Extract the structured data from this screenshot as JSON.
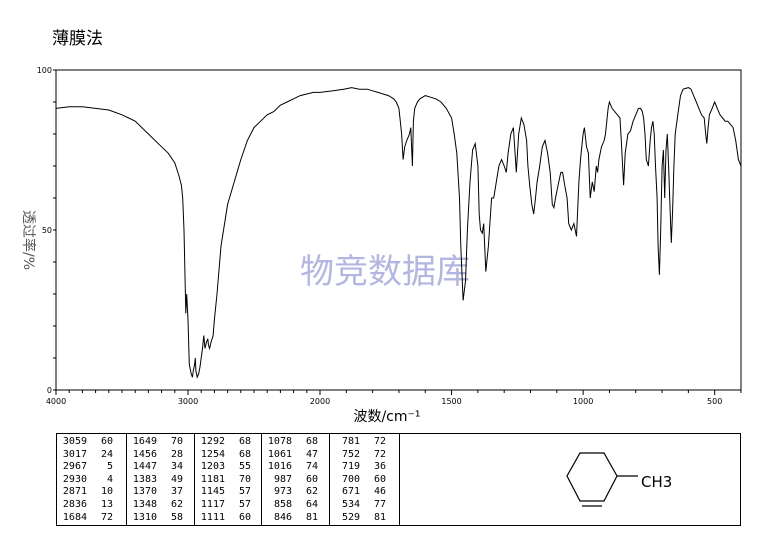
{
  "header": {
    "method": "薄膜法"
  },
  "colors": {
    "line": "#000000",
    "watermark": "#b3b6e0"
  },
  "chart_data": {
    "type": "line",
    "title": "",
    "xlabel": "波数/cm⁻¹",
    "ylabel": "透过率/%",
    "xlim": [
      4000,
      400
    ],
    "ylim": [
      0,
      100
    ],
    "x_ticks": [
      4000,
      3000,
      2000,
      1500,
      1000,
      500
    ],
    "x_tick_labels": [
      "4000",
      "3000",
      "2000",
      "1500",
      "1000",
      "500"
    ],
    "y_ticks": [
      0,
      50,
      100
    ],
    "y_tick_labels": [
      "0",
      "50",
      "100"
    ],
    "watermark": "物竞数据库",
    "series": [
      {
        "x": [
          4000,
          3900,
          3800,
          3700,
          3600,
          3500,
          3400,
          3300,
          3200,
          3150,
          3100,
          3069,
          3050,
          3040,
          3030,
          3025,
          3017,
          3010,
          3000,
          2990,
          2980,
          2975,
          2967,
          2960,
          2950,
          2945,
          2940,
          2935,
          2930,
          2920,
          2910,
          2900,
          2890,
          2880,
          2871,
          2860,
          2850,
          2845,
          2836,
          2825,
          2810,
          2800,
          2780,
          2750,
          2700,
          2650,
          2600,
          2550,
          2500,
          2450,
          2400,
          2350,
          2300,
          2250,
          2200,
          2150,
          2100,
          2050,
          2000,
          1950,
          1910,
          1880,
          1850,
          1820,
          1800,
          1780,
          1760,
          1740,
          1720,
          1710,
          1700,
          1695,
          1690,
          1684,
          1678,
          1670,
          1660,
          1655,
          1649,
          1645,
          1640,
          1630,
          1620,
          1600,
          1580,
          1560,
          1540,
          1520,
          1500,
          1490,
          1480,
          1470,
          1465,
          1456,
          1450,
          1447,
          1440,
          1430,
          1420,
          1410,
          1400,
          1395,
          1390,
          1383,
          1378,
          1370,
          1360,
          1348,
          1340,
          1330,
          1320,
          1310,
          1300,
          1292,
          1285,
          1275,
          1265,
          1254,
          1245,
          1235,
          1225,
          1215,
          1210,
          1203,
          1195,
          1188,
          1181,
          1175,
          1165,
          1155,
          1145,
          1135,
          1125,
          1117,
          1111,
          1105,
          1095,
          1085,
          1078,
          1070,
          1061,
          1055,
          1045,
          1035,
          1025,
          1016,
          1010,
          1000,
          995,
          987,
          980,
          973,
          965,
          958,
          950,
          945,
          940,
          930,
          920,
          915,
          910,
          905,
          900,
          890,
          880,
          870,
          860,
          858,
          855,
          850,
          846,
          840,
          830,
          820,
          810,
          800,
          790,
          781,
          775,
          770,
          765,
          760,
          752,
          745,
          740,
          735,
          730,
          725,
          719,
          715,
          710,
          705,
          700,
          695,
          690,
          685,
          680,
          675,
          671,
          665,
          660,
          655,
          650,
          640,
          630,
          620,
          600,
          590,
          580,
          570,
          560,
          550,
          540,
          534,
          530,
          525,
          520,
          510,
          500,
          490,
          480,
          470,
          460,
          450,
          440,
          430,
          420,
          410,
          400
        ],
        "y": [
          88,
          88.5,
          88.5,
          88,
          87.5,
          86,
          84,
          80,
          76,
          74,
          71,
          67,
          64,
          60,
          50,
          40,
          24,
          30,
          22,
          8,
          6,
          5,
          4,
          6,
          8,
          10,
          6,
          5,
          4,
          5,
          7,
          10,
          13,
          17,
          13,
          15,
          16,
          14,
          13,
          15,
          17,
          22,
          30,
          45,
          58,
          65,
          72,
          78,
          82,
          84,
          86,
          87,
          89,
          90,
          91,
          92,
          92.5,
          93,
          93,
          93.5,
          94,
          94.5,
          94,
          94,
          93.5,
          93,
          92.5,
          92,
          91,
          90,
          88,
          84,
          80,
          72,
          76,
          78,
          80,
          82,
          70,
          84,
          88,
          90,
          91,
          92,
          91.5,
          91,
          90,
          88,
          85,
          80,
          74,
          60,
          45,
          28,
          32,
          34,
          50,
          65,
          75,
          77,
          70,
          55,
          50,
          49,
          52,
          37,
          45,
          60,
          60,
          65,
          70,
          72,
          70,
          68,
          74,
          80,
          82,
          68,
          80,
          85,
          83,
          78,
          70,
          64,
          58,
          55,
          60,
          65,
          70,
          76,
          78,
          74,
          68,
          58,
          57,
          60,
          64,
          68,
          68,
          64,
          60,
          52,
          50,
          52,
          48,
          65,
          72,
          80,
          82,
          76,
          74,
          60,
          65,
          62,
          70,
          68,
          72,
          76,
          78,
          80,
          84,
          88,
          90,
          88,
          87,
          86,
          85,
          82,
          78,
          70,
          64,
          74,
          80,
          81,
          84,
          86,
          88,
          88,
          87,
          85,
          80,
          72,
          70,
          78,
          82,
          84,
          80,
          70,
          60,
          45,
          36,
          50,
          70,
          75,
          60,
          75,
          80,
          70,
          60,
          46,
          56,
          70,
          80,
          86,
          92,
          94,
          94.5,
          94,
          92,
          90,
          88,
          86,
          85,
          80,
          77,
          82,
          86,
          88,
          90,
          88,
          86,
          85,
          84,
          84,
          83,
          82,
          78,
          72,
          70
        ]
      }
    ],
    "peak_table": [
      [
        [
          "3059",
          "60"
        ],
        [
          "3017",
          "24"
        ],
        [
          "2967",
          "5"
        ],
        [
          "2930",
          "4"
        ],
        [
          "2871",
          "10"
        ],
        [
          "2836",
          "13"
        ],
        [
          "1684",
          "72"
        ]
      ],
      [
        [
          "1649",
          "70"
        ],
        [
          "1456",
          "28"
        ],
        [
          "1447",
          "34"
        ],
        [
          "1383",
          "49"
        ],
        [
          "1370",
          "37"
        ],
        [
          "1348",
          "62"
        ],
        [
          "1310",
          "58"
        ]
      ],
      [
        [
          "1292",
          "68"
        ],
        [
          "1254",
          "68"
        ],
        [
          "1203",
          "55"
        ],
        [
          "1181",
          "70"
        ],
        [
          "1145",
          "57"
        ],
        [
          "1117",
          "57"
        ],
        [
          "1111",
          "60"
        ]
      ],
      [
        [
          "1078",
          "68"
        ],
        [
          "1061",
          "47"
        ],
        [
          "1016",
          "74"
        ],
        [
          "987",
          "60"
        ],
        [
          "973",
          "62"
        ],
        [
          "858",
          "64"
        ],
        [
          "846",
          "81"
        ]
      ],
      [
        [
          "781",
          "72"
        ],
        [
          "752",
          "72"
        ],
        [
          "719",
          "36"
        ],
        [
          "700",
          "60"
        ],
        [
          "671",
          "46"
        ],
        [
          "534",
          "77"
        ],
        [
          "529",
          "81"
        ]
      ]
    ]
  },
  "structure": {
    "substituent_label": "CH3"
  }
}
